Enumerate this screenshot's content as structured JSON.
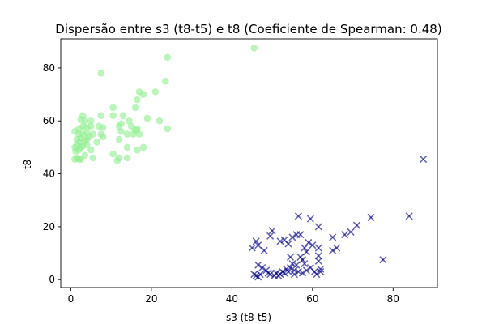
{
  "chart_data": {
    "type": "scatter",
    "title": "Dispersão entre s3 (t8-t5) e t8 (Coeficiente de Spearman: 0.48)",
    "xlabel": "s3 (t8-t5)",
    "ylabel": "t8",
    "xlim": [
      -2.5,
      91
    ],
    "ylim": [
      -3,
      91
    ],
    "xticks": [
      0,
      20,
      40,
      60,
      80
    ],
    "yticks": [
      0,
      20,
      40,
      60,
      80
    ],
    "grid": false,
    "legend": "none",
    "series": [
      {
        "marker": "circle",
        "color": "#90ee90",
        "points": [
          [
            1.0,
            45.5
          ],
          [
            1.5,
            46.0
          ],
          [
            2.0,
            45.5
          ],
          [
            2.5,
            45.5
          ],
          [
            1.2,
            48.5
          ],
          [
            2.0,
            49.0
          ],
          [
            2.5,
            50.0
          ],
          [
            1.0,
            50.0
          ],
          [
            1.5,
            51.0
          ],
          [
            3.0,
            50.5
          ],
          [
            2.2,
            52.0
          ],
          [
            3.5,
            52.5
          ],
          [
            4.0,
            53.0
          ],
          [
            2.5,
            53.5
          ],
          [
            3.0,
            55.0
          ],
          [
            1.0,
            56.0
          ],
          [
            4.5,
            54.0
          ],
          [
            2.0,
            57.0
          ],
          [
            3.0,
            58.0
          ],
          [
            4.0,
            57.5
          ],
          [
            3.5,
            60.0
          ],
          [
            2.5,
            60.5
          ],
          [
            3.0,
            62.0
          ],
          [
            5.0,
            60.0
          ],
          [
            4.0,
            55.5
          ],
          [
            1.5,
            53.0
          ],
          [
            3.5,
            47.0
          ],
          [
            5.0,
            49.0
          ],
          [
            4.0,
            51.0
          ],
          [
            2.0,
            55.0
          ],
          [
            5.5,
            46.0
          ],
          [
            5.5,
            55.0
          ],
          [
            5.0,
            58.0
          ],
          [
            7.0,
            58.0
          ],
          [
            8.0,
            57.5
          ],
          [
            7.5,
            55.0
          ],
          [
            8.0,
            54.0
          ],
          [
            7.5,
            62.0
          ],
          [
            6.5,
            52.0
          ],
          [
            7.5,
            78.0
          ],
          [
            10.5,
            65.0
          ],
          [
            10.5,
            62.0
          ],
          [
            10.5,
            47.5
          ],
          [
            11.5,
            45.0
          ],
          [
            12.0,
            46.0
          ],
          [
            12.0,
            58.0
          ],
          [
            12.5,
            59.0
          ],
          [
            12.0,
            53.0
          ],
          [
            12.5,
            56.0
          ],
          [
            13.0,
            62.0
          ],
          [
            14.0,
            55.0
          ],
          [
            14.0,
            50.0
          ],
          [
            14.5,
            60.0
          ],
          [
            14.0,
            46.0
          ],
          [
            15.0,
            58.0
          ],
          [
            15.5,
            55.0
          ],
          [
            16.0,
            56.5
          ],
          [
            16.5,
            57.0
          ],
          [
            17.0,
            55.0
          ],
          [
            16.0,
            65.0
          ],
          [
            16.5,
            68.0
          ],
          [
            17.0,
            71.0
          ],
          [
            16.5,
            49.0
          ],
          [
            18.0,
            50.0
          ],
          [
            18.0,
            70.0
          ],
          [
            19.0,
            61.0
          ],
          [
            21.0,
            71.0
          ],
          [
            22.0,
            60.0
          ],
          [
            23.5,
            75.0
          ],
          [
            24.0,
            84.0
          ],
          [
            24.0,
            57.0
          ],
          [
            45.5,
            87.5
          ]
        ]
      },
      {
        "marker": "x",
        "color": "#00008b",
        "points": [
          [
            45.0,
            12.0
          ],
          [
            46.0,
            14.5
          ],
          [
            46.5,
            13.0
          ],
          [
            45.5,
            2.0
          ],
          [
            46.0,
            1.5
          ],
          [
            46.5,
            1.0
          ],
          [
            47.0,
            2.0
          ],
          [
            46.5,
            5.5
          ],
          [
            47.5,
            4.5
          ],
          [
            48.0,
            11.0
          ],
          [
            48.5,
            3.5
          ],
          [
            49.0,
            2.5
          ],
          [
            49.5,
            2.0
          ],
          [
            49.5,
            16.5
          ],
          [
            50.0,
            18.5
          ],
          [
            50.5,
            1.5
          ],
          [
            51.0,
            2.5
          ],
          [
            51.5,
            1.5
          ],
          [
            52.0,
            2.0
          ],
          [
            52.0,
            14.5
          ],
          [
            52.5,
            3.0
          ],
          [
            53.0,
            2.5
          ],
          [
            53.0,
            15.0
          ],
          [
            53.5,
            4.0
          ],
          [
            54.0,
            3.0
          ],
          [
            54.0,
            13.5
          ],
          [
            54.5,
            8.5
          ],
          [
            54.5,
            4.5
          ],
          [
            55.0,
            6.0
          ],
          [
            55.0,
            16.0
          ],
          [
            55.5,
            2.0
          ],
          [
            55.5,
            3.5
          ],
          [
            56.0,
            17.0
          ],
          [
            56.0,
            5.5
          ],
          [
            56.5,
            24.0
          ],
          [
            56.5,
            3.0
          ],
          [
            57.0,
            8.5
          ],
          [
            57.0,
            17.0
          ],
          [
            57.5,
            7.5
          ],
          [
            57.5,
            2.5
          ],
          [
            58.0,
            6.0
          ],
          [
            58.0,
            12.0
          ],
          [
            58.5,
            10.5
          ],
          [
            58.5,
            3.5
          ],
          [
            59.0,
            14.0
          ],
          [
            59.5,
            23.0
          ],
          [
            59.5,
            4.5
          ],
          [
            60.0,
            13.0
          ],
          [
            60.5,
            3.0
          ],
          [
            61.0,
            2.0
          ],
          [
            61.5,
            20.0
          ],
          [
            61.5,
            12.0
          ],
          [
            61.5,
            9.0
          ],
          [
            61.5,
            7.0
          ],
          [
            62.0,
            4.0
          ],
          [
            62.0,
            3.0
          ],
          [
            65.0,
            16.0
          ],
          [
            65.0,
            11.0
          ],
          [
            66.0,
            12.0
          ],
          [
            68.0,
            17.0
          ],
          [
            69.5,
            18.0
          ],
          [
            71.0,
            20.5
          ],
          [
            74.5,
            23.5
          ],
          [
            77.5,
            7.5
          ],
          [
            84.0,
            24.0
          ],
          [
            87.5,
            45.5
          ]
        ]
      }
    ]
  }
}
